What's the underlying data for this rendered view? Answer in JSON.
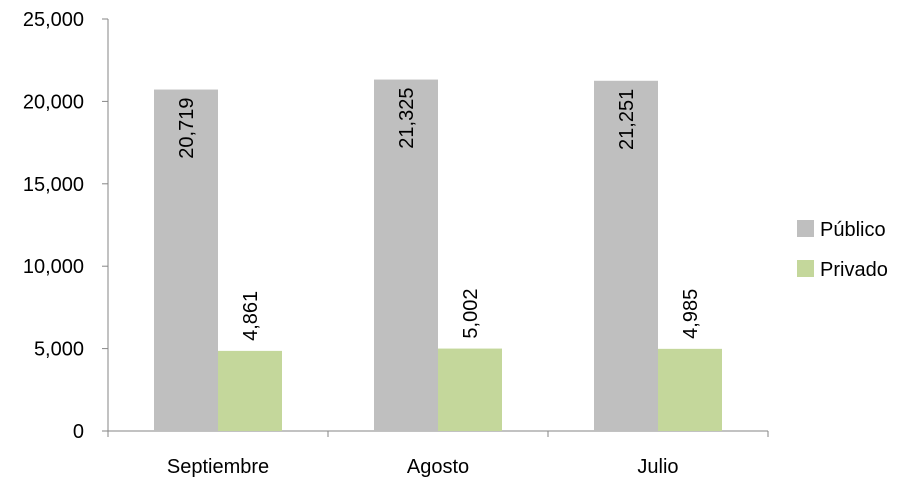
{
  "chart_data": {
    "type": "bar",
    "categories": [
      "Septiembre",
      "Agosto",
      "Julio"
    ],
    "series": [
      {
        "name": "Público",
        "values": [
          20719,
          21325,
          21251
        ],
        "color": "#BFBFBF"
      },
      {
        "name": "Privado",
        "values": [
          4861,
          5002,
          4985
        ],
        "color": "#C4D79B"
      }
    ],
    "data_labels": {
      "Público": [
        "20,719",
        "21,325",
        "21,251"
      ],
      "Privado": [
        "4,861",
        "5,002",
        "4,985"
      ]
    },
    "y_ticks": [
      "0",
      "5,000",
      "10,000",
      "15,000",
      "20,000",
      "25,000"
    ],
    "ylim": [
      0,
      25000
    ],
    "title": "",
    "xlabel": "",
    "ylabel": "",
    "grid": false,
    "legend_position": "right",
    "data_label_orientation": "vertical"
  }
}
